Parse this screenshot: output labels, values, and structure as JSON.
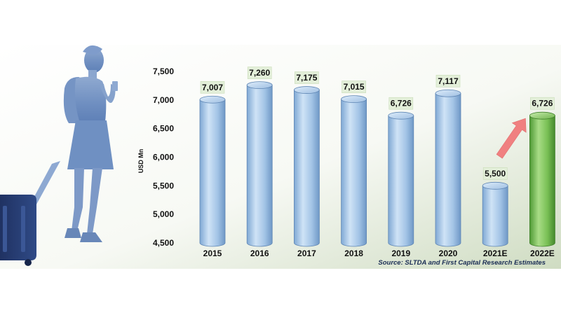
{
  "chart_data": {
    "type": "bar",
    "categories": [
      "2015",
      "2016",
      "2017",
      "2018",
      "2019",
      "2020",
      "2021E",
      "2022E"
    ],
    "values": [
      7007,
      7260,
      7175,
      7015,
      6726,
      7117,
      5500,
      6726
    ],
    "data_labels": [
      "7,007",
      "7,260",
      "7,175",
      "7,015",
      "6,726",
      "7,117",
      "5,500",
      "6,726"
    ],
    "ylabel": "USD Mn",
    "ylim": [
      4500,
      7500
    ],
    "yticks": [
      4500,
      5000,
      5500,
      6000,
      6500,
      7000,
      7500
    ],
    "ytick_labels": [
      "4,500",
      "5,000",
      "5,500",
      "6,000",
      "6,500",
      "7,000",
      "7,500"
    ],
    "grid": false,
    "bar_style": "3d-cylinder",
    "colors": {
      "actual": "#a9c8e6",
      "estimate_highlight": "#7dc35a",
      "label_box": "#e3efd9",
      "arrow": "#f08080"
    },
    "highlight_index": 7,
    "arrow": {
      "from_index": 6,
      "to_index": 7
    },
    "decoration": "traveler-silhouette-with-luggage"
  },
  "source": "Source: SLTDA and First Capital Research Estimates"
}
